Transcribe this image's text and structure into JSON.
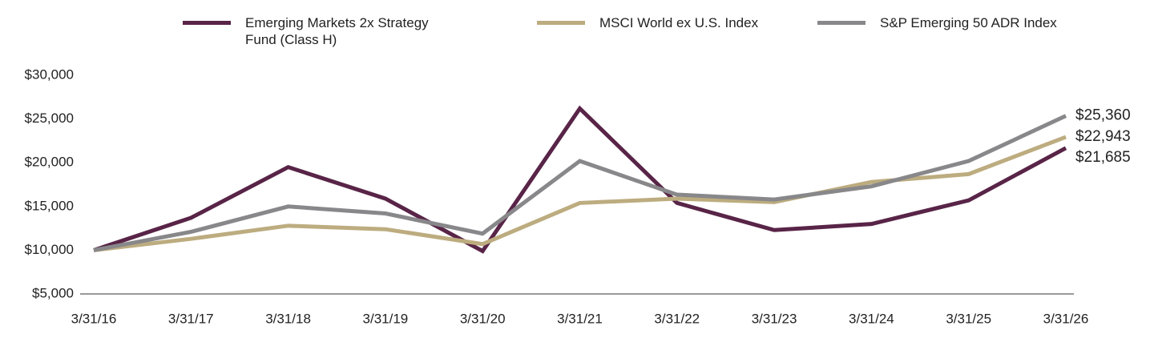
{
  "chart_data": {
    "type": "line",
    "x": [
      "3/31/16",
      "3/31/17",
      "3/31/18",
      "3/31/19",
      "3/31/20",
      "3/31/21",
      "3/31/22",
      "3/31/23",
      "3/31/24",
      "3/31/25",
      "3/31/26"
    ],
    "series": [
      {
        "name": "Emerging Markets 2x Strategy Fund (Class H)",
        "color": "#582447",
        "values": [
          10000,
          13700,
          19500,
          15900,
          9900,
          26200,
          15400,
          12300,
          13000,
          15700,
          21685
        ],
        "value_labels": [
          null,
          null,
          null,
          null,
          null,
          null,
          null,
          null,
          null,
          null,
          "$21,685"
        ]
      },
      {
        "name": "MSCI World ex U.S. Index",
        "color": "#bcac7f",
        "values": [
          10000,
          11300,
          12800,
          12400,
          10700,
          15400,
          15900,
          15500,
          17800,
          18700,
          22943
        ],
        "value_labels": [
          null,
          null,
          null,
          null,
          null,
          null,
          null,
          null,
          null,
          null,
          "$22,943"
        ]
      },
      {
        "name": "S&P Emerging 50 ADR Index",
        "color": "#88878a",
        "values": [
          10000,
          12100,
          15000,
          14200,
          11900,
          20200,
          16350,
          15800,
          17300,
          20200,
          25360
        ],
        "value_labels": [
          null,
          null,
          null,
          null,
          null,
          null,
          null,
          null,
          null,
          null,
          "$25,360"
        ]
      }
    ],
    "ylim": [
      5000,
      30000
    ],
    "yticks": [
      {
        "value": 5000,
        "label": "$5,000"
      },
      {
        "value": 10000,
        "label": "$10,000"
      },
      {
        "value": 15000,
        "label": "$15,000"
      },
      {
        "value": 20000,
        "label": "$20,000"
      },
      {
        "value": 25000,
        "label": "$25,000"
      },
      {
        "value": 30000,
        "label": "$30,000"
      }
    ],
    "grid": false
  }
}
